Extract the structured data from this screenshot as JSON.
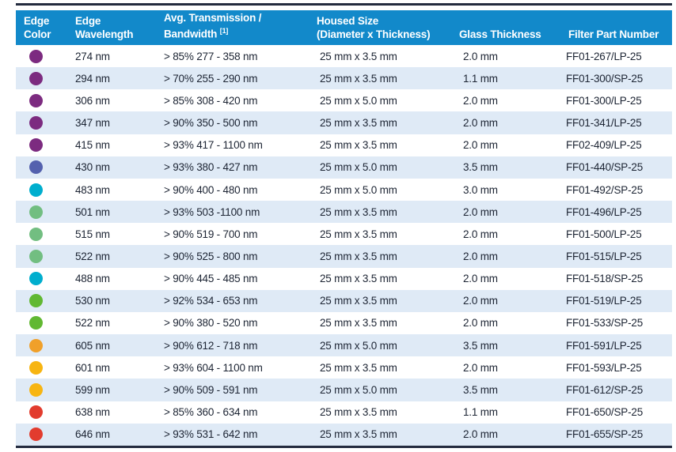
{
  "colors": {
    "header_bg": "#1289ca",
    "stripe_bg": "#dfeaf6",
    "rule": "#232b3e",
    "text": "#1c2433",
    "header_text": "#ffffff"
  },
  "table": {
    "headers": [
      {
        "line1": "Edge",
        "line2": "Color"
      },
      {
        "line1": "Edge",
        "line2": "Wavelength"
      },
      {
        "line1": "Avg. Transmission /",
        "line2": "Bandwidth",
        "sup": "[1]"
      },
      {
        "line1": "Housed Size",
        "line2": "(Diameter x Thickness)"
      },
      {
        "line1": "",
        "line2": "Glass Thickness"
      },
      {
        "line1": "",
        "line2": "Filter Part Number"
      }
    ],
    "rows": [
      {
        "color_name": "purple",
        "color": "#7c2b80",
        "wavelength": "274 nm",
        "transmission": "> 85% 277 - 358 nm",
        "housed_size": "25 mm x 3.5 mm",
        "glass_thickness": "2.0 mm",
        "part_number": "FF01-267/LP-25"
      },
      {
        "color_name": "purple",
        "color": "#7c2b80",
        "wavelength": "294 nm",
        "transmission": "> 70% 255 - 290 nm",
        "housed_size": "25 mm x 3.5 mm",
        "glass_thickness": "1.1 mm",
        "part_number": "FF01-300/SP-25"
      },
      {
        "color_name": "purple",
        "color": "#7c2b80",
        "wavelength": "306 nm",
        "transmission": "> 85% 308 - 420 nm",
        "housed_size": "25 mm x 5.0 mm",
        "glass_thickness": "2.0 mm",
        "part_number": "FF01-300/LP-25"
      },
      {
        "color_name": "purple",
        "color": "#7c2b80",
        "wavelength": "347 nm",
        "transmission": "> 90% 350 - 500 nm",
        "housed_size": "25 mm x 3.5 mm",
        "glass_thickness": "2.0 mm",
        "part_number": "FF01-341/LP-25"
      },
      {
        "color_name": "purple",
        "color": "#7c2b80",
        "wavelength": "415 nm",
        "transmission": "> 93% 417 - 1100 nm",
        "housed_size": "25 mm x 3.5 mm",
        "glass_thickness": "2.0 mm",
        "part_number": "FF02-409/LP-25"
      },
      {
        "color_name": "blue-violet",
        "color": "#5461ae",
        "wavelength": "430 nm",
        "transmission": "> 93% 380 - 427 nm",
        "housed_size": "25 mm x 5.0 mm",
        "glass_thickness": "3.5 mm",
        "part_number": "FF01-440/SP-25"
      },
      {
        "color_name": "cyan",
        "color": "#00aece",
        "wavelength": "483 nm",
        "transmission": "> 90% 400 - 480 nm",
        "housed_size": "25 mm x 5.0 mm",
        "glass_thickness": "3.0 mm",
        "part_number": "FF01-492/SP-25"
      },
      {
        "color_name": "soft-green",
        "color": "#72be81",
        "wavelength": "501 nm",
        "transmission": "> 93% 503 -1100 nm",
        "housed_size": "25 mm x 3.5 mm",
        "glass_thickness": "2.0 mm",
        "part_number": "FF01-496/LP-25"
      },
      {
        "color_name": "soft-green",
        "color": "#72be81",
        "wavelength": "515 nm",
        "transmission": "> 90% 519 - 700 nm",
        "housed_size": "25 mm x 3.5 mm",
        "glass_thickness": "2.0 mm",
        "part_number": "FF01-500/LP-25"
      },
      {
        "color_name": "soft-green",
        "color": "#72be81",
        "wavelength": "522 nm",
        "transmission": "> 90% 525 - 800 nm",
        "housed_size": "25 mm x 3.5 mm",
        "glass_thickness": "2.0 mm",
        "part_number": "FF01-515/LP-25"
      },
      {
        "color_name": "cyan",
        "color": "#00aece",
        "wavelength": "488 nm",
        "transmission": "> 90% 445 - 485 nm",
        "housed_size": "25 mm x 3.5 mm",
        "glass_thickness": "2.0 mm",
        "part_number": "FF01-518/SP-25"
      },
      {
        "color_name": "bright-green",
        "color": "#61b832",
        "wavelength": "530 nm",
        "transmission": "> 92% 534 - 653 nm",
        "housed_size": "25 mm x 3.5 mm",
        "glass_thickness": "2.0 mm",
        "part_number": "FF01-519/LP-25"
      },
      {
        "color_name": "bright-green",
        "color": "#61b832",
        "wavelength": "522 nm",
        "transmission": "> 90% 380 - 520 nm",
        "housed_size": "25 mm x 3.5 mm",
        "glass_thickness": "2.0 mm",
        "part_number": "FF01-533/SP-25"
      },
      {
        "color_name": "orange",
        "color": "#f0a02a",
        "wavelength": "605 nm",
        "transmission": "> 90% 612 - 718 nm",
        "housed_size": "25 mm x 5.0 mm",
        "glass_thickness": "3.5 mm",
        "part_number": "FF01-591/LP-25"
      },
      {
        "color_name": "amber",
        "color": "#f7b512",
        "wavelength": "601 nm",
        "transmission": "> 93% 604 - 1100 nm",
        "housed_size": "25 mm x 3.5 mm",
        "glass_thickness": "2.0 mm",
        "part_number": "FF01-593/LP-25"
      },
      {
        "color_name": "amber",
        "color": "#f7b512",
        "wavelength": "599 nm",
        "transmission": "> 90% 509 - 591 nm",
        "housed_size": "25 mm x 5.0 mm",
        "glass_thickness": "3.5 mm",
        "part_number": "FF01-612/SP-25"
      },
      {
        "color_name": "red",
        "color": "#e23c2e",
        "wavelength": "638 nm",
        "transmission": "> 85% 360 - 634 nm",
        "housed_size": "25 mm x 3.5 mm",
        "glass_thickness": "1.1 mm",
        "part_number": "FF01-650/SP-25"
      },
      {
        "color_name": "red",
        "color": "#e23c2e",
        "wavelength": "646 nm",
        "transmission": "> 93% 531 - 642 nm",
        "housed_size": "25 mm x 3.5 mm",
        "glass_thickness": "2.0 mm",
        "part_number": "FF01-655/SP-25"
      }
    ]
  }
}
